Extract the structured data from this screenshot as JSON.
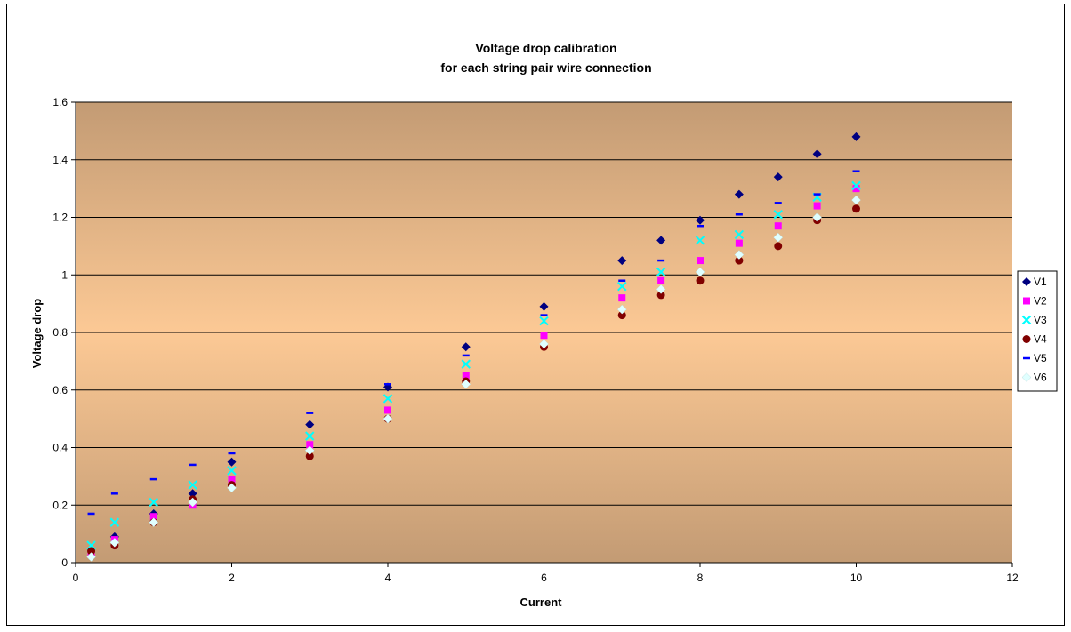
{
  "chart_data": {
    "type": "scatter",
    "title": "Voltage drop calibration",
    "subtitle": "for each string pair wire connection",
    "xlabel": "Current",
    "ylabel": "Voltage drop",
    "xlim": [
      0,
      12
    ],
    "ylim": [
      0,
      1.6
    ],
    "xticks": [
      "0",
      "2",
      "4",
      "6",
      "8",
      "10",
      "12"
    ],
    "yticks": [
      "0",
      "0.2",
      "0.4",
      "0.6",
      "0.8",
      "1",
      "1.2",
      "1.4",
      "1.6"
    ],
    "grid": "horizontal",
    "legend_position": "right",
    "plot_background": [
      "#c39b74",
      "#fcc995",
      "#c39b74"
    ],
    "series": [
      {
        "name": "V1",
        "marker": "diamond",
        "color": "#000080",
        "x": [
          0.2,
          0.5,
          1.0,
          1.5,
          2.0,
          3.0,
          4.0,
          5.0,
          6.0,
          7.0,
          7.5,
          8.0,
          8.5,
          9.0,
          9.5,
          10.0
        ],
        "y": [
          0.02,
          0.09,
          0.17,
          0.24,
          0.35,
          0.48,
          0.61,
          0.75,
          0.89,
          1.05,
          1.12,
          1.19,
          1.28,
          1.34,
          1.42,
          1.48
        ]
      },
      {
        "name": "V2",
        "marker": "square",
        "color": "#ff00ff",
        "x": [
          0.2,
          0.5,
          1.0,
          1.5,
          2.0,
          3.0,
          4.0,
          5.0,
          6.0,
          7.0,
          7.5,
          8.0,
          8.5,
          9.0,
          9.5,
          10.0
        ],
        "y": [
          0.03,
          0.08,
          0.16,
          0.2,
          0.29,
          0.41,
          0.53,
          0.65,
          0.79,
          0.92,
          0.98,
          1.05,
          1.11,
          1.17,
          1.24,
          1.3
        ]
      },
      {
        "name": "V3",
        "marker": "x",
        "color": "#00ffff",
        "x": [
          0.2,
          0.5,
          1.0,
          1.5,
          2.0,
          3.0,
          4.0,
          5.0,
          6.0,
          7.0,
          7.5,
          8.0,
          8.5,
          9.0,
          9.5,
          10.0
        ],
        "y": [
          0.06,
          0.14,
          0.21,
          0.27,
          0.32,
          0.44,
          0.57,
          0.69,
          0.84,
          0.96,
          1.01,
          1.12,
          1.14,
          1.21,
          1.27,
          1.31
        ]
      },
      {
        "name": "V4",
        "marker": "circle",
        "color": "#800000",
        "x": [
          0.2,
          0.5,
          1.0,
          1.5,
          2.0,
          3.0,
          4.0,
          5.0,
          6.0,
          7.0,
          7.5,
          8.0,
          8.5,
          9.0,
          9.5,
          10.0
        ],
        "y": [
          0.04,
          0.06,
          0.14,
          0.22,
          0.27,
          0.37,
          0.5,
          0.63,
          0.75,
          0.86,
          0.93,
          0.98,
          1.05,
          1.1,
          1.19,
          1.23
        ]
      },
      {
        "name": "V5",
        "marker": "dash",
        "color": "#0000ff",
        "x": [
          0.2,
          0.5,
          1.0,
          1.5,
          2.0,
          3.0,
          4.0,
          5.0,
          6.0,
          7.0,
          7.5,
          8.0,
          8.5,
          9.0,
          9.5,
          10.0
        ],
        "y": [
          0.17,
          0.24,
          0.29,
          0.34,
          0.38,
          0.52,
          0.62,
          0.72,
          0.86,
          0.98,
          1.05,
          1.17,
          1.21,
          1.25,
          1.28,
          1.36
        ]
      },
      {
        "name": "V6",
        "marker": "diamond",
        "color": "#e0ffff",
        "x": [
          0.2,
          0.5,
          1.0,
          1.5,
          2.0,
          3.0,
          4.0,
          5.0,
          6.0,
          7.0,
          7.5,
          8.0,
          8.5,
          9.0,
          9.5,
          10.0
        ],
        "y": [
          0.02,
          0.07,
          0.14,
          0.21,
          0.26,
          0.39,
          0.5,
          0.62,
          0.76,
          0.88,
          0.95,
          1.01,
          1.07,
          1.13,
          1.2,
          1.26
        ]
      }
    ]
  }
}
